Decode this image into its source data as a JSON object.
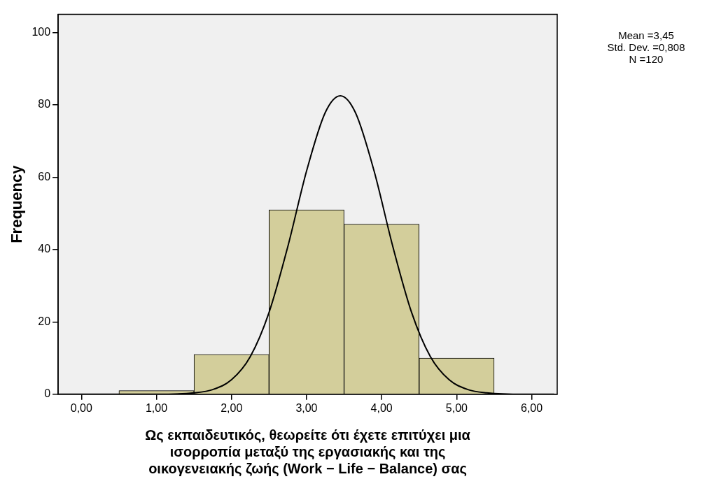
{
  "chart_data": {
    "type": "histogram",
    "xlabel": "Ως εκπαιδευτικός, θεωρείτε ότι έχετε επιτύχει μια\nισορροπία μεταξύ της εργασιακής και της\nοικογενειακής ζωής (Work − Life − Balance) σας",
    "ylabel": "Frequency",
    "bins": [
      0.5,
      1.5,
      2.5,
      3.5,
      4.5,
      5.5
    ],
    "values": [
      1,
      11,
      51,
      47,
      10
    ],
    "color": "#d3ce9b",
    "series": [
      {
        "type": "line",
        "color": "#000000",
        "x": [
          -0.3,
          1.0,
          1.5,
          1.75,
          2.0,
          2.25,
          2.5,
          2.75,
          3.0,
          3.25,
          3.45,
          3.65,
          3.9,
          4.15,
          4.4,
          4.65,
          4.9,
          5.15,
          5.4,
          5.9,
          6.3
        ],
        "values": [
          0,
          0,
          0.4,
          1.3,
          4,
          10.4,
          22.6,
          40.8,
          61.7,
          77.9,
          82.5,
          77.9,
          61.7,
          40.8,
          22.6,
          10.4,
          4,
          1.3,
          0.4,
          0,
          0
        ]
      }
    ],
    "xlim": [
      -0.31,
      6.34
    ],
    "ylim": [
      0,
      105
    ],
    "xticks": [
      {
        "value": 0,
        "label": "0,00"
      },
      {
        "value": 1,
        "label": "1,00"
      },
      {
        "value": 2,
        "label": "2,00"
      },
      {
        "value": 3,
        "label": "3,00"
      },
      {
        "value": 4,
        "label": "4,00"
      },
      {
        "value": 5,
        "label": "5,00"
      },
      {
        "value": 6,
        "label": "6,00"
      }
    ],
    "yticks": [
      0,
      20,
      40,
      60,
      80,
      100
    ],
    "annotations": [
      "Mean =3,45",
      "Std. Dev. =0,808",
      "N =120"
    ]
  }
}
